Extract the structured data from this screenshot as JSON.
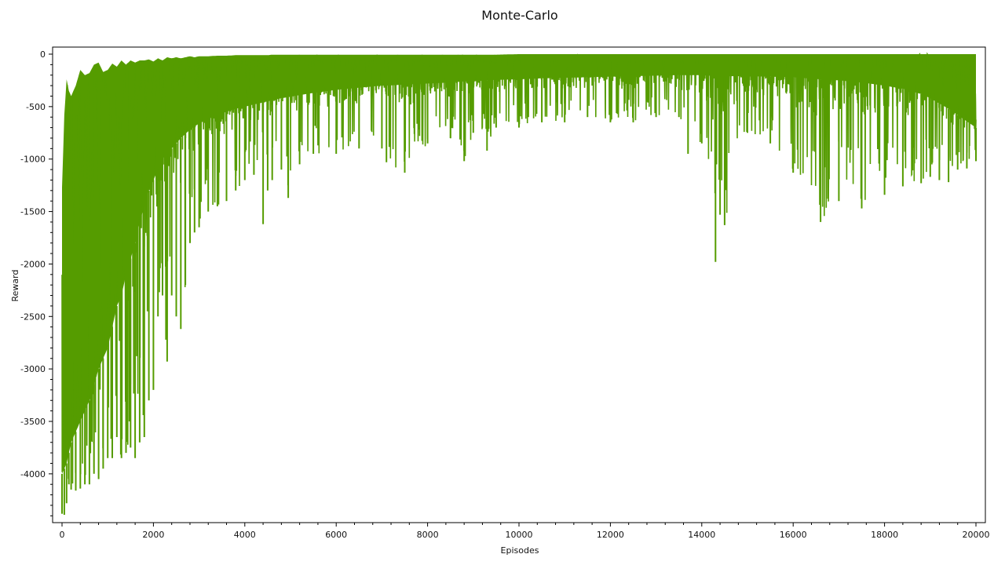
{
  "chart_data": {
    "type": "line",
    "title": "Monte-Carlo",
    "xlabel": "Episodes",
    "ylabel": "Reward",
    "xlim": [
      0,
      20000
    ],
    "ylim": [
      -4420,
      0
    ],
    "x_ticks": [
      0,
      2000,
      4000,
      6000,
      8000,
      10000,
      12000,
      14000,
      16000,
      18000,
      20000
    ],
    "y_ticks": [
      0,
      -500,
      -1000,
      -1500,
      -2000,
      -2500,
      -3000,
      -3500,
      -4000
    ],
    "grid": false,
    "line_color": "#559c00",
    "series": [
      {
        "x": [
          0,
          50,
          100,
          150,
          200,
          300,
          400,
          500,
          600,
          700,
          800,
          900,
          1000,
          1100,
          1200,
          1300,
          1400,
          1500,
          1600,
          1700,
          1800,
          1900,
          2000,
          2100,
          2200,
          2300,
          2400,
          2500,
          2600,
          2700,
          2800,
          2900,
          3000,
          3200,
          3400,
          3600,
          3800,
          4000,
          4200,
          4400,
          4500,
          4600,
          4800,
          4950,
          5200,
          5500,
          6000,
          6500,
          7000,
          7100,
          7500,
          8000,
          8500,
          8800,
          9000,
          9300,
          9500,
          10000,
          10500,
          11000,
          11500,
          12000,
          12500,
          13000,
          13500,
          13700,
          14000,
          14300,
          14400,
          14500,
          15000,
          15500,
          16000,
          16600,
          17000,
          17500,
          18000,
          18400,
          18800,
          19000,
          19200,
          19400,
          19600,
          19800,
          20000
        ],
        "y_max": [
          -1270,
          -580,
          -240,
          -350,
          -400,
          -300,
          -150,
          -200,
          -180,
          -100,
          -80,
          -170,
          -150,
          -90,
          -120,
          -60,
          -100,
          -60,
          -80,
          -60,
          -60,
          -50,
          -70,
          -40,
          -60,
          -30,
          -40,
          -30,
          -40,
          -30,
          -20,
          -30,
          -20,
          -20,
          -15,
          -15,
          -10,
          -10,
          -10,
          -10,
          -10,
          -5,
          -5,
          -5,
          -5,
          -5,
          -5,
          -5,
          -5,
          -5,
          -5,
          -5,
          -5,
          -5,
          -5,
          -5,
          -5,
          0,
          0,
          0,
          0,
          0,
          0,
          0,
          0,
          0,
          0,
          0,
          0,
          0,
          0,
          0,
          0,
          0,
          0,
          0,
          0,
          0,
          0,
          0,
          0,
          0,
          0,
          0,
          0
        ],
        "y_min": [
          -4380,
          -4390,
          -4280,
          -4100,
          -4150,
          -4160,
          -4140,
          -4100,
          -4100,
          -4000,
          -4050,
          -3950,
          -3850,
          -3850,
          -3650,
          -3850,
          -3800,
          -3750,
          -3850,
          -3700,
          -3650,
          -3300,
          -3200,
          -2500,
          -2300,
          -2930,
          -2300,
          -2500,
          -2620,
          -2200,
          -1800,
          -1700,
          -1650,
          -1500,
          -1450,
          -1400,
          -1300,
          -1200,
          -1150,
          -1620,
          -1300,
          -1200,
          -1100,
          -1370,
          -1050,
          -950,
          -950,
          -900,
          -900,
          -1030,
          -1130,
          -850,
          -800,
          -1020,
          -750,
          -920,
          -700,
          -700,
          -650,
          -650,
          -600,
          -650,
          -650,
          -600,
          -600,
          -950,
          -850,
          -1980,
          -1530,
          -1630,
          -750,
          -850,
          -1130,
          -1600,
          -1400,
          -1470,
          -1340,
          -1260,
          -1230,
          -1170,
          -1200,
          -1220,
          -1100,
          -1090,
          -1020
        ],
        "y_body_low": [
          -4000,
          -3950,
          -3900,
          -3800,
          -3700,
          -3600,
          -3500,
          -3400,
          -3300,
          -3150,
          -3000,
          -2900,
          -2800,
          -2600,
          -2400,
          -2300,
          -2100,
          -1950,
          -1800,
          -1600,
          -1450,
          -1300,
          -1200,
          -1100,
          -1000,
          -950,
          -900,
          -850,
          -800,
          -760,
          -720,
          -690,
          -660,
          -620,
          -580,
          -550,
          -520,
          -500,
          -480,
          -460,
          -450,
          -440,
          -420,
          -410,
          -390,
          -370,
          -340,
          -320,
          -300,
          -300,
          -290,
          -280,
          -270,
          -260,
          -260,
          -250,
          -245,
          -240,
          -230,
          -225,
          -220,
          -215,
          -210,
          -205,
          -200,
          -200,
          -200,
          -210,
          -210,
          -210,
          -210,
          -215,
          -220,
          -240,
          -250,
          -270,
          -300,
          -330,
          -380,
          -420,
          -470,
          -520,
          -580,
          -640,
          -700
        ]
      }
    ]
  }
}
